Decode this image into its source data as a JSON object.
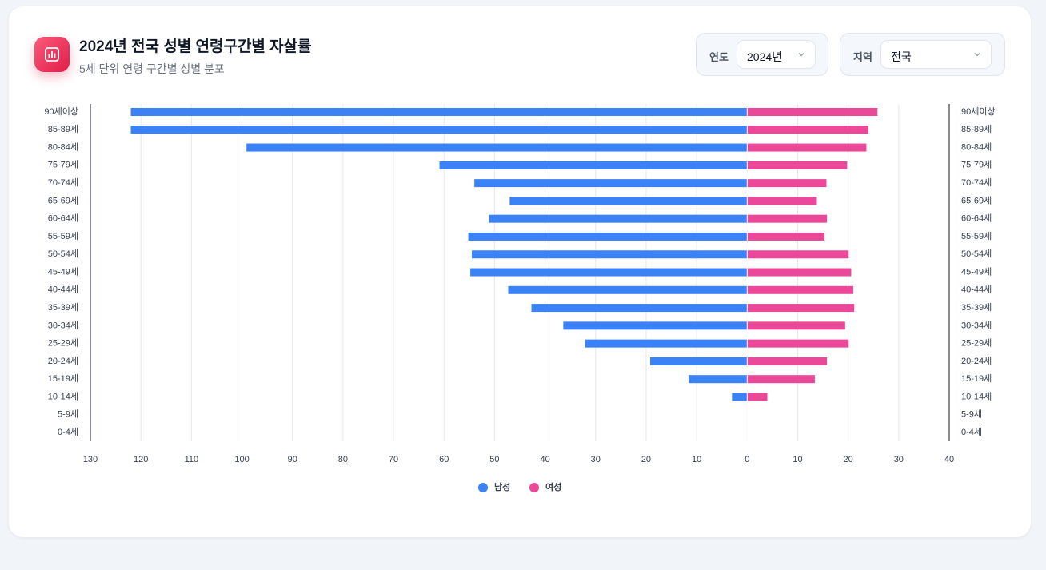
{
  "header": {
    "title": "2024년 전국 성별 연령구간별 자살률",
    "subtitle": "5세 단위 연령 구간별 성별 분포"
  },
  "controls": [
    {
      "label": "연도",
      "value": "2024년"
    },
    {
      "label": "지역",
      "value": "전국"
    }
  ],
  "chart_data": {
    "type": "bar",
    "orientation": "horizontal",
    "categories": [
      "90세이상",
      "85-89세",
      "80-84세",
      "75-79세",
      "70-74세",
      "65-69세",
      "60-64세",
      "55-59세",
      "50-54세",
      "45-49세",
      "40-44세",
      "35-39세",
      "30-34세",
      "25-29세",
      "20-24세",
      "15-19세",
      "10-14세",
      "5-9세",
      "0-4세"
    ],
    "series": [
      {
        "name": "남성",
        "color": "#3b82f6",
        "values": [
          -122,
          -122,
          -99.1,
          -60.9,
          -54,
          -47,
          -51.1,
          -55.2,
          -54.5,
          -54.8,
          -47.3,
          -42.7,
          -36.4,
          -32.1,
          -19.2,
          -11.6,
          -3.0,
          0,
          0
        ]
      },
      {
        "name": "여성",
        "color": "#ec4899",
        "values": [
          25.8,
          24.0,
          23.6,
          19.8,
          15.7,
          13.8,
          15.8,
          15.3,
          20.1,
          20.6,
          21.0,
          21.2,
          19.4,
          20.1,
          15.8,
          13.4,
          4.0,
          0,
          0
        ]
      }
    ],
    "xlim": [
      -130,
      40
    ],
    "xticks": [
      {
        "value": -130,
        "label": "130"
      },
      {
        "value": -120,
        "label": "120"
      },
      {
        "value": -110,
        "label": "110"
      },
      {
        "value": -100,
        "label": "100"
      },
      {
        "value": -90,
        "label": "90"
      },
      {
        "value": -80,
        "label": "80"
      },
      {
        "value": -70,
        "label": "70"
      },
      {
        "value": -60,
        "label": "60"
      },
      {
        "value": -50,
        "label": "50"
      },
      {
        "value": -40,
        "label": "40"
      },
      {
        "value": -30,
        "label": "30"
      },
      {
        "value": -20,
        "label": "20"
      },
      {
        "value": -10,
        "label": "10"
      },
      0,
      10,
      20,
      30,
      40
    ],
    "grid": true,
    "legend": "bottom"
  }
}
